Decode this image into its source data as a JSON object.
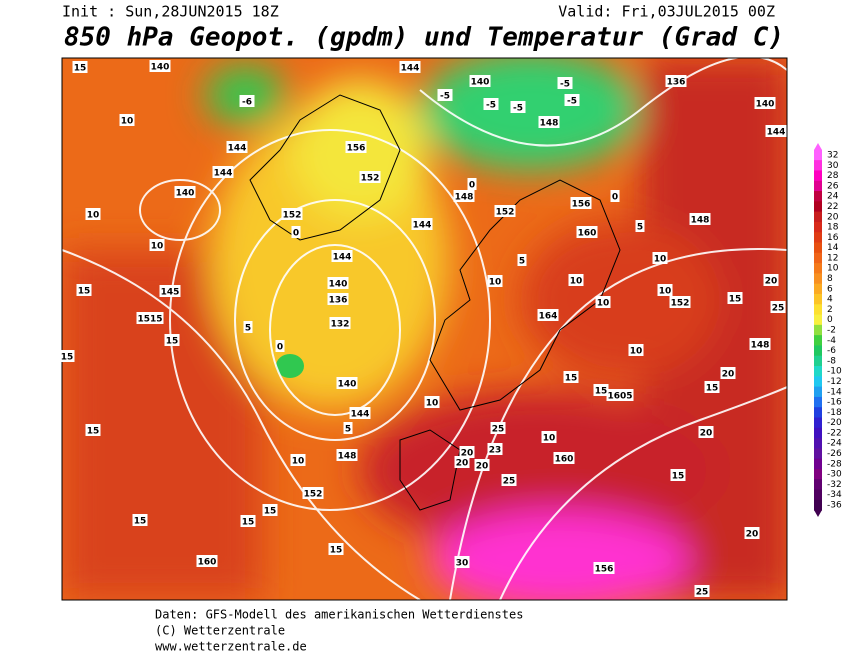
{
  "header": {
    "init": "Init : Sun,28JUN2015 18Z",
    "valid": "Valid: Fri,03JUL2015 00Z",
    "title": "850 hPa Geopot. (gpdm) und Temperatur (Grad C)"
  },
  "colorbar": {
    "values": [
      32,
      30,
      28,
      26,
      24,
      22,
      20,
      18,
      16,
      14,
      12,
      10,
      8,
      6,
      4,
      2,
      0,
      -2,
      -4,
      -6,
      -8,
      -10,
      -12,
      -14,
      -16,
      -18,
      -20,
      -22,
      -24,
      -26,
      -28,
      -30,
      -32,
      -34,
      -36
    ],
    "colors": [
      "#ff60ff",
      "#ff30e0",
      "#ff00c0",
      "#e00090",
      "#c00040",
      "#b00020",
      "#c81e1e",
      "#d82a1a",
      "#e03c14",
      "#e85010",
      "#f06418",
      "#f57a1a",
      "#f89020",
      "#fbaa22",
      "#fcc426",
      "#fde030",
      "#f8f040",
      "#90e040",
      "#40d040",
      "#20c860",
      "#20d090",
      "#20d8c8",
      "#20c8f0",
      "#20a0f0",
      "#2070f0",
      "#2040e0",
      "#3020d0",
      "#4010c0",
      "#5010b0",
      "#6010a0",
      "#700090",
      "#800080",
      "#600070",
      "#500060",
      "#400050"
    ]
  },
  "map_labels": [
    "140",
    "15",
    "10",
    "144",
    "144",
    "140",
    "10",
    "10",
    "152",
    "0",
    "144",
    "140",
    "136",
    "132",
    "5",
    "0",
    "140",
    "144",
    "5",
    "10",
    "148",
    "152",
    "15",
    "15",
    "15",
    "160",
    "15",
    "15",
    "15",
    "15",
    "145",
    "1515",
    "15",
    "144",
    "140",
    "136",
    "140",
    "144",
    "-6",
    "-5",
    "-5",
    "-5",
    "-5",
    "-5",
    "148",
    "156",
    "152",
    "0",
    "148",
    "152",
    "156",
    "160",
    "144",
    "0",
    "148",
    "5",
    "10",
    "10",
    "152",
    "15",
    "20",
    "25",
    "148",
    "164",
    "10",
    "20",
    "15",
    "15",
    "1605",
    "15",
    "10",
    "160",
    "20",
    "25",
    "20",
    "20",
    "23",
    "20",
    "25",
    "15",
    "20",
    "30",
    "156",
    "25",
    "10",
    "10",
    "10",
    "10",
    "5"
  ],
  "footer": [
    "Daten: GFS-Modell des amerikanischen Wetterdienstes",
    "(C) Wetterzentrale",
    "www.wetterzentrale.de"
  ]
}
